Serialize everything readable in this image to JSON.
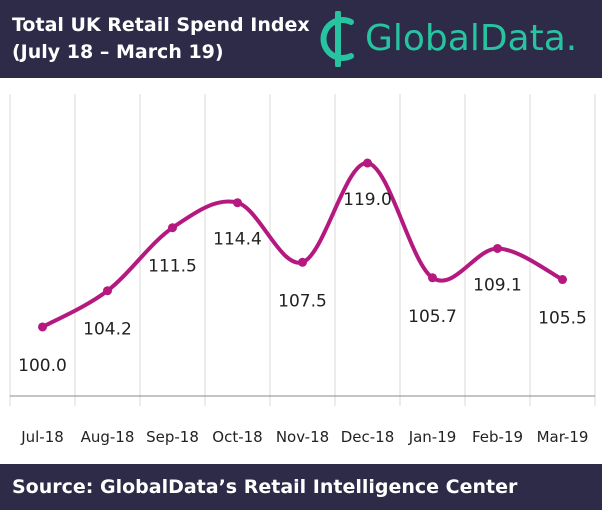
{
  "header": {
    "title_line1": "Total UK Retail Spend Index",
    "title_line2": "(July 18 – March 19)",
    "logo_text": "GlobalData."
  },
  "footer": {
    "source": "Source:  GlobalData’s Retail Intelligence Center"
  },
  "colors": {
    "header_bg": "#2d2b48",
    "logo_accent": "#27c4a2",
    "series_line": "#b5187f",
    "grid": "#d8d8d8",
    "axis": "#888888"
  },
  "chart_data": {
    "type": "line",
    "categories": [
      "Jul-18",
      "Aug-18",
      "Sep-18",
      "Oct-18",
      "Nov-18",
      "Dec-18",
      "Jan-19",
      "Feb-19",
      "Mar-19"
    ],
    "series": [
      {
        "values": [
          100.0,
          104.2,
          111.5,
          114.4,
          107.5,
          119.0,
          105.7,
          109.1,
          105.5
        ],
        "labels": [
          "100.0",
          "104.2",
          "111.5",
          "114.4",
          "107.5",
          "119.0",
          "105.7",
          "109.1",
          "105.5"
        ]
      }
    ],
    "ylim": [
      92,
      127
    ],
    "grid": "vertical",
    "title": "",
    "xlabel": "",
    "ylabel": ""
  }
}
